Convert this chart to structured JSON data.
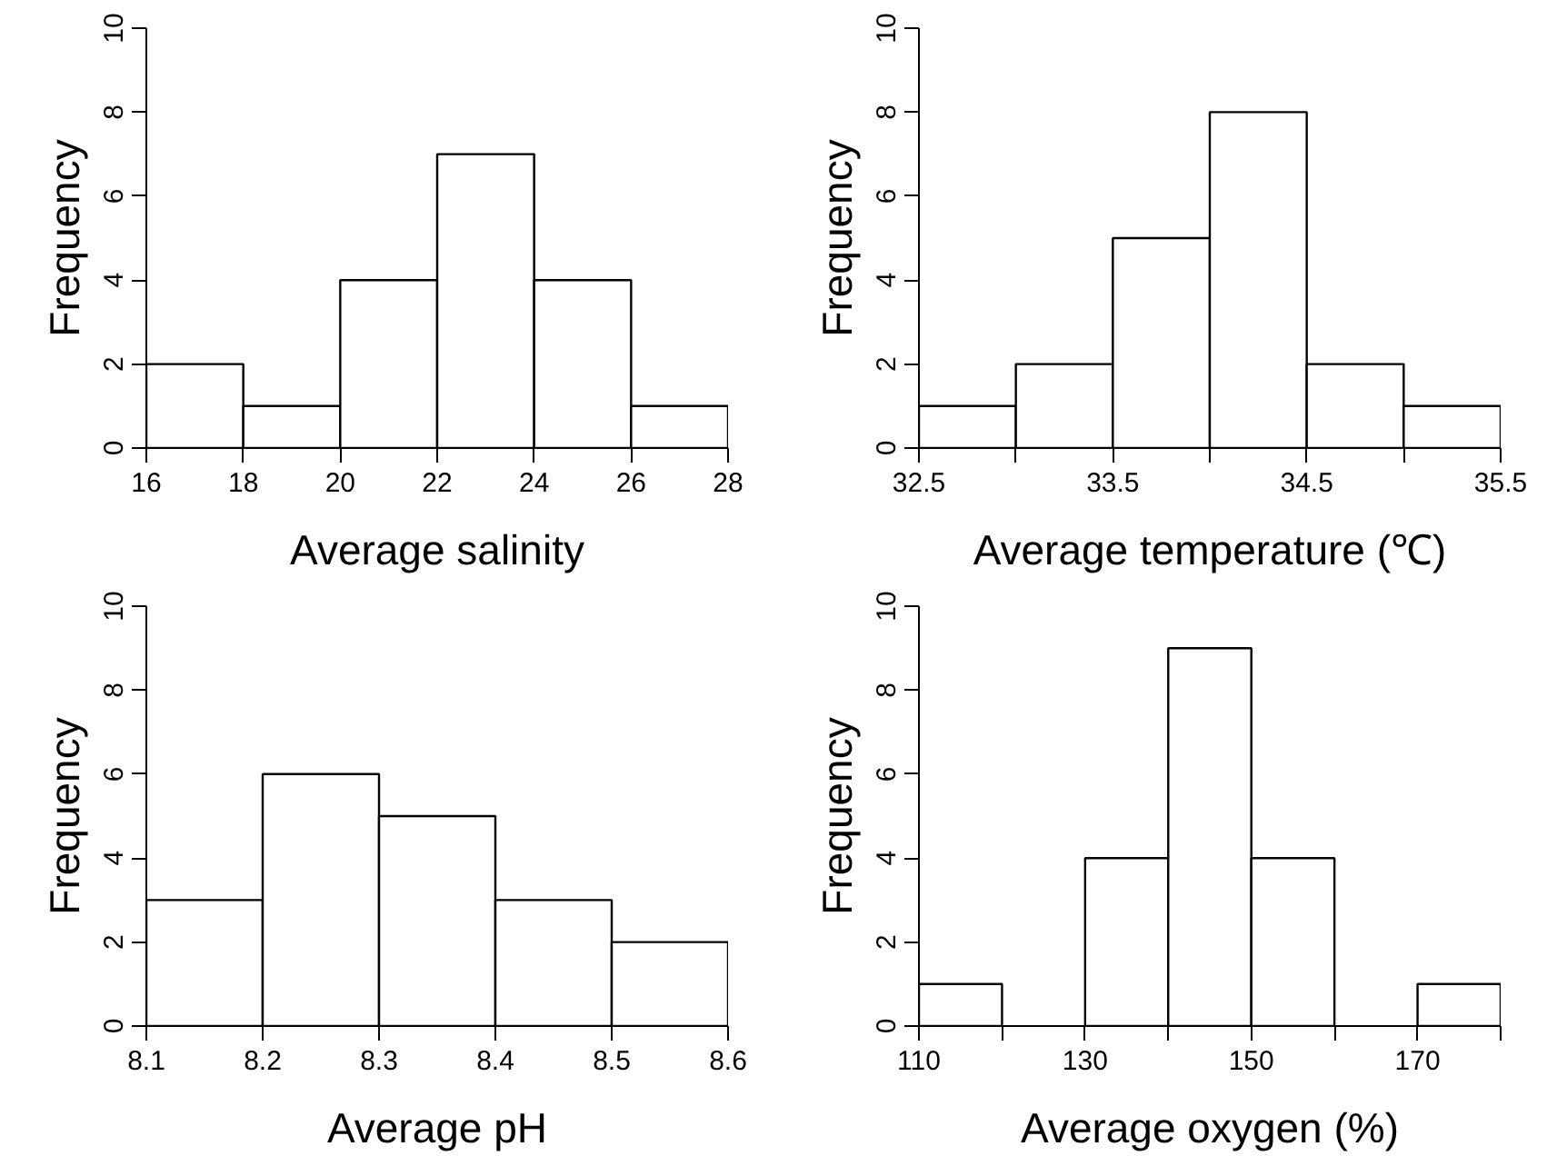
{
  "chart_data": [
    {
      "type": "histogram",
      "xlabel": "Average salinity",
      "ylabel": "Frequency",
      "bins": [
        16,
        18,
        20,
        22,
        24,
        26,
        28
      ],
      "values": [
        2,
        1,
        4,
        7,
        4,
        1
      ],
      "color": "#ffffff",
      "xlim": [
        16,
        28
      ],
      "ylim": [
        0,
        10
      ],
      "xticks": [
        16,
        18,
        20,
        22,
        24,
        26,
        28
      ],
      "yticks": [
        0,
        2,
        4,
        6,
        8,
        10
      ],
      "grid": false
    },
    {
      "type": "histogram",
      "xlabel": "Average temperature (℃)",
      "ylabel": "Frequency",
      "bins": [
        32.5,
        33,
        33.5,
        34,
        34.5,
        35,
        35.5
      ],
      "values": [
        1,
        2,
        5,
        8,
        2,
        1
      ],
      "color": "#ffffff",
      "xlim": [
        32.5,
        35.5
      ],
      "ylim": [
        0,
        10
      ],
      "xticks": [
        32.5,
        {
          "value": 33,
          "label": null
        },
        33.5,
        {
          "value": 34,
          "label": null
        },
        34.5,
        {
          "value": 35,
          "label": null
        },
        35.5
      ],
      "yticks": [
        0,
        2,
        4,
        6,
        8,
        10
      ],
      "grid": false
    },
    {
      "type": "histogram",
      "xlabel": "Average pH",
      "ylabel": "Frequency",
      "bins": [
        8.1,
        8.2,
        8.3,
        8.4,
        8.5,
        8.6
      ],
      "values": [
        3,
        6,
        5,
        3,
        2
      ],
      "color": "#ffffff",
      "xlim": [
        8.1,
        8.6
      ],
      "ylim": [
        0,
        10
      ],
      "xticks": [
        8.1,
        8.2,
        8.3,
        8.4,
        8.5,
        8.6
      ],
      "yticks": [
        0,
        2,
        4,
        6,
        8,
        10
      ],
      "grid": false
    },
    {
      "type": "histogram",
      "xlabel": "Average oxygen (%)",
      "ylabel": "Frequency",
      "bins": [
        110,
        120,
        130,
        140,
        150,
        160,
        170,
        180
      ],
      "values": [
        1,
        0,
        4,
        9,
        4,
        0,
        1
      ],
      "color": "#ffffff",
      "xlim": [
        110,
        180
      ],
      "ylim": [
        0,
        10
      ],
      "xticks": [
        110,
        {
          "value": 120,
          "label": null
        },
        130,
        {
          "value": 140,
          "label": null
        },
        150,
        {
          "value": 160,
          "label": null
        },
        170,
        {
          "value": 180,
          "label": null
        }
      ],
      "yticks": [
        0,
        2,
        4,
        6,
        8,
        10
      ],
      "grid": false
    }
  ]
}
